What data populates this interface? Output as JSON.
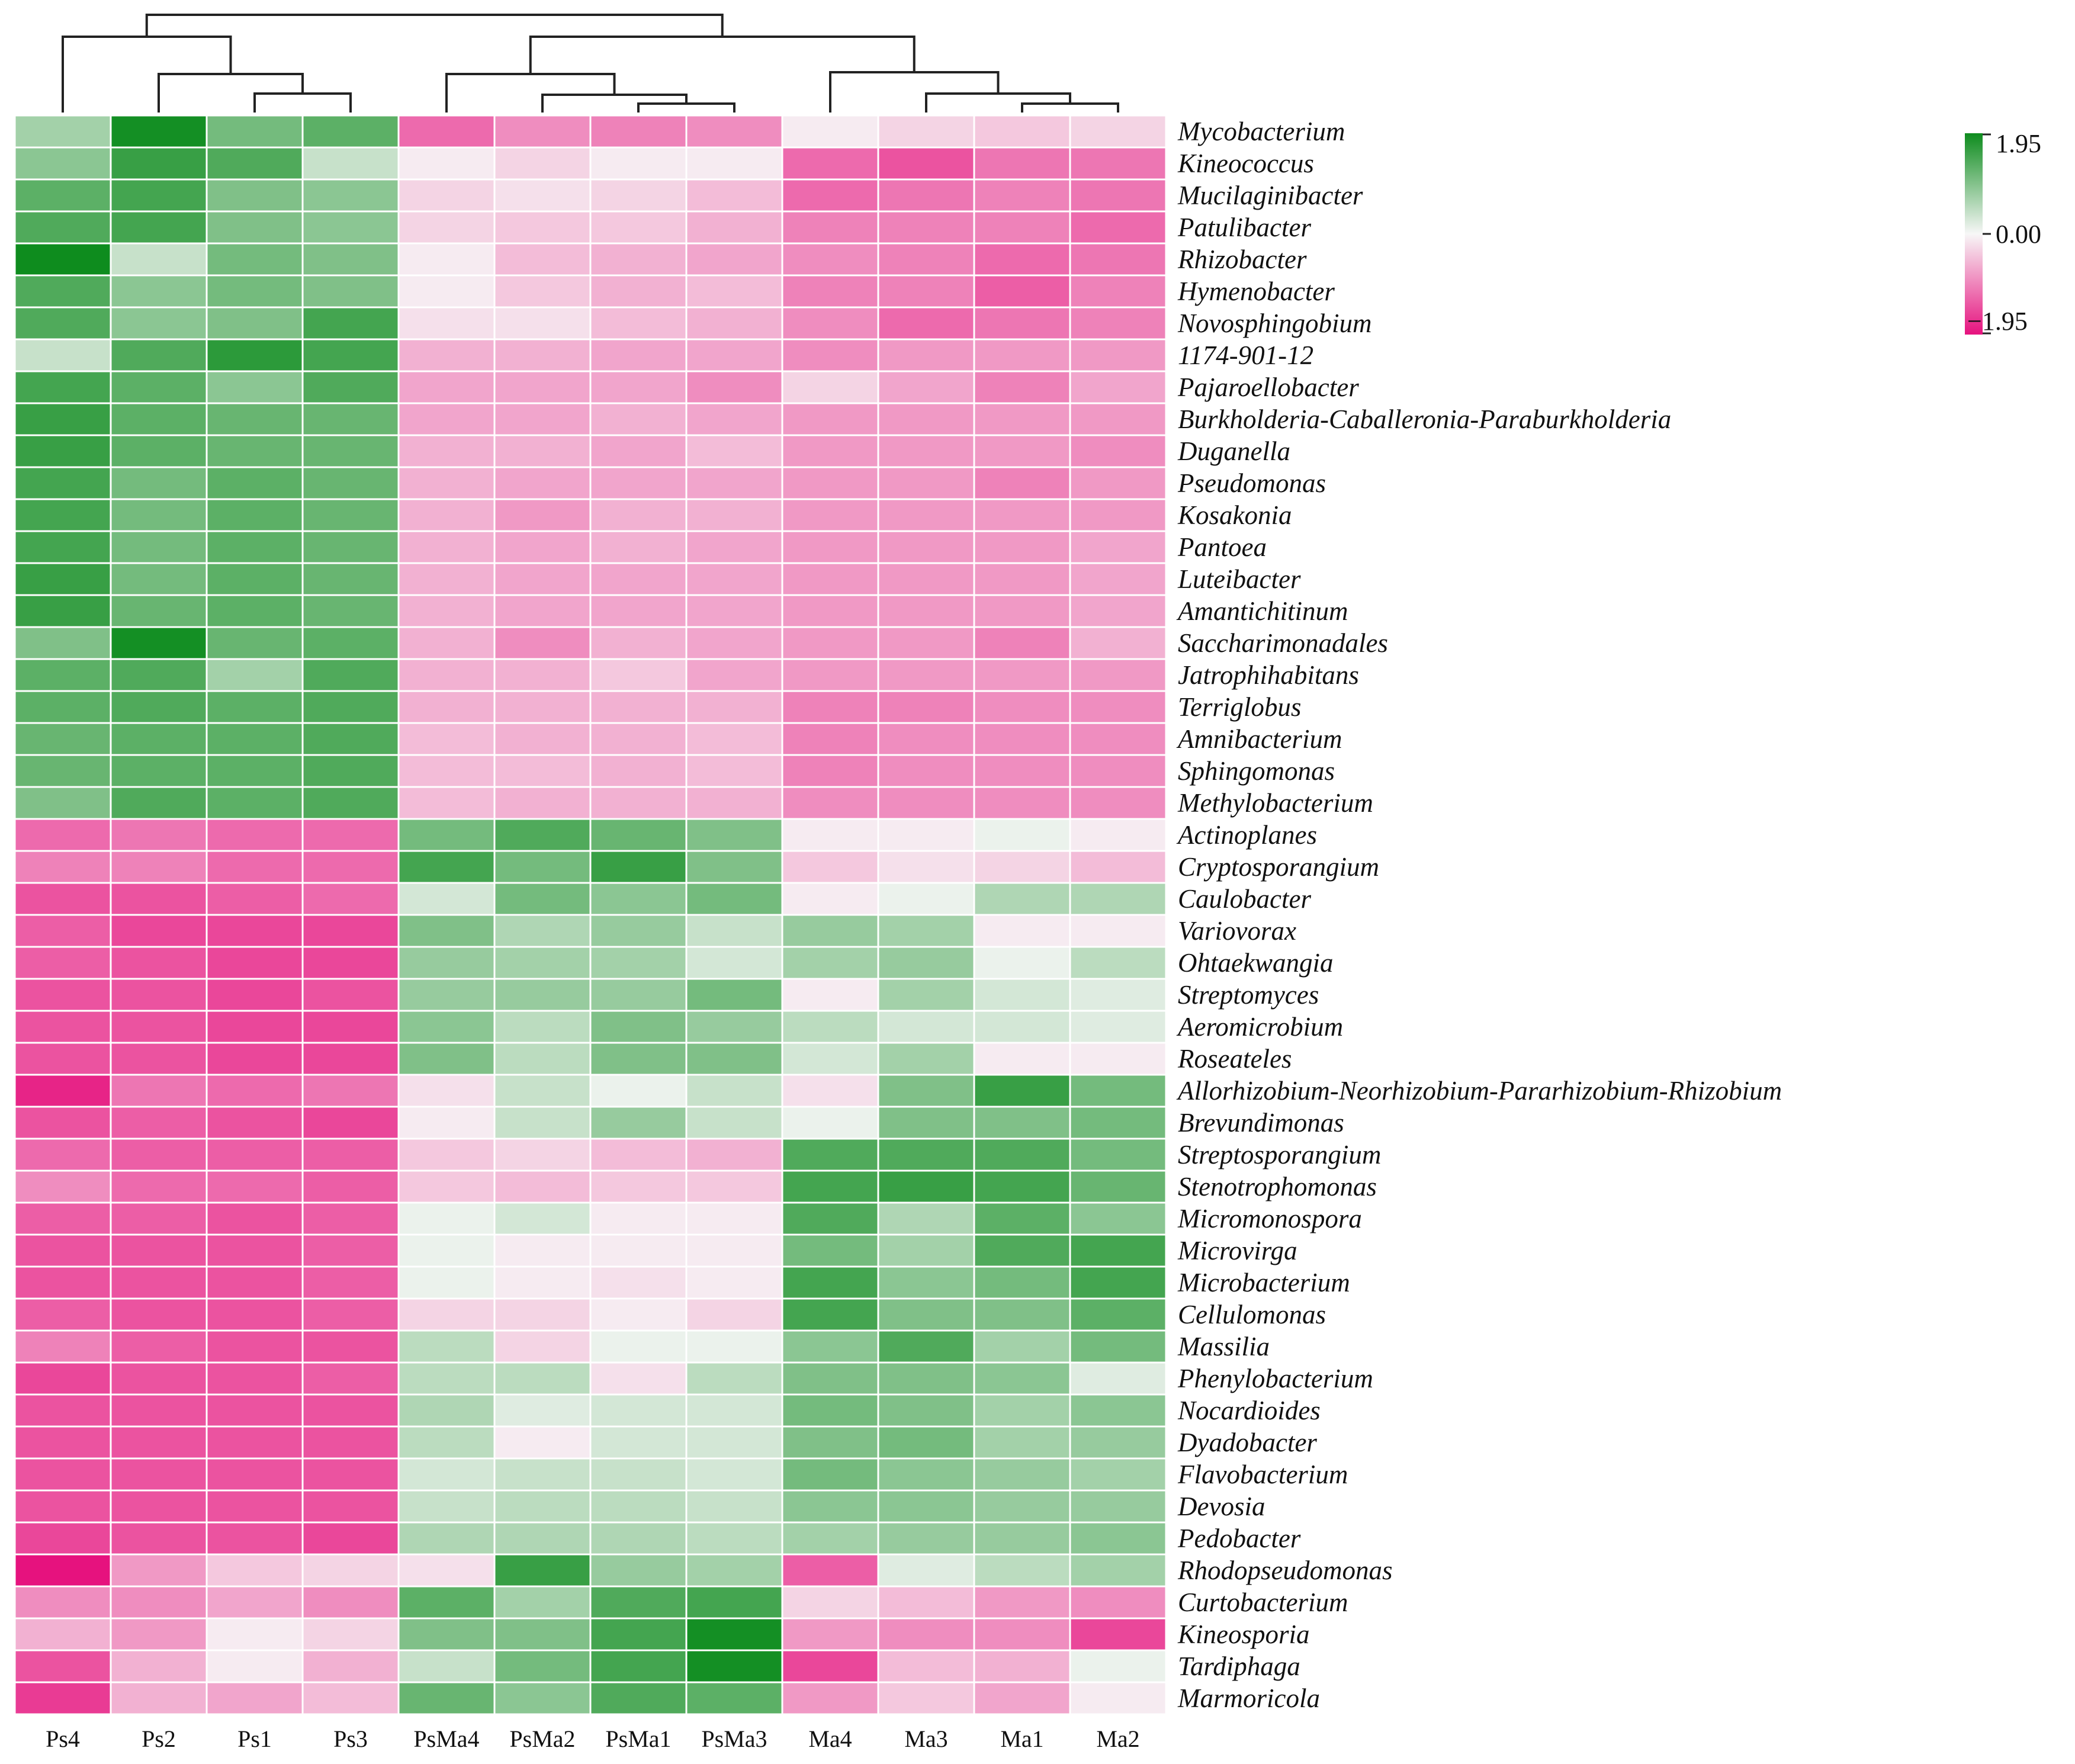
{
  "chart_data": {
    "type": "heatmap",
    "title": "",
    "columns": [
      "Ps4",
      "Ps2",
      "Ps1",
      "Ps3",
      "PsMa4",
      "PsMa2",
      "PsMa1",
      "PsMa3",
      "Ma4",
      "Ma3",
      "Ma1",
      "Ma2"
    ],
    "rows": [
      "Mycobacterium",
      "Kineococcus",
      "Mucilaginibacter",
      "Patulibacter",
      "Rhizobacter",
      "Hymenobacter",
      "Novosphingobium",
      "1174-901-12",
      "Pajaroellobacter",
      "Burkholderia-Caballeronia-Paraburkholderia",
      "Duganella",
      "Pseudomonas",
      "Kosakonia",
      "Pantoea",
      "Luteibacter",
      "Amantichitinum",
      "Saccharimonadales",
      "Jatrophihabitans",
      "Terriglobus",
      "Amnibacterium",
      "Sphingomonas",
      "Methylobacterium",
      "Actinoplanes",
      "Cryptosporangium",
      "Caulobacter",
      "Variovorax",
      "Ohtaekwangia",
      "Streptomyces",
      "Aeromicrobium",
      "Roseateles",
      "Allorhizobium-Neorhizobium-Pararhizobium-Rhizobium",
      "Brevundimonas",
      "Streptosporangium",
      "Stenotrophomonas",
      "Micromonospora",
      "Microvirga",
      "Microbacterium",
      "Cellulomonas",
      "Massilia",
      "Phenylobacterium",
      "Nocardioides",
      "Dyadobacter",
      "Flavobacterium",
      "Devosia",
      "Pedobacter",
      "Rhodopseudomonas",
      "Curtobacterium",
      "Kineosporia",
      "Tardiphaga",
      "Marmoricola"
    ],
    "values": [
      [
        0.7,
        1.9,
        1.1,
        1.3,
        -1.2,
        -0.9,
        -1.0,
        -0.9,
        -0.1,
        -0.3,
        -0.4,
        -0.3
      ],
      [
        0.9,
        1.6,
        1.4,
        0.4,
        -0.1,
        -0.3,
        -0.1,
        -0.1,
        -1.2,
        -1.4,
        -1.1,
        -1.1
      ],
      [
        1.3,
        1.5,
        1.0,
        0.9,
        -0.3,
        -0.2,
        -0.3,
        -0.5,
        -1.2,
        -1.1,
        -1.0,
        -1.1
      ],
      [
        1.4,
        1.5,
        1.0,
        0.9,
        -0.3,
        -0.4,
        -0.4,
        -0.6,
        -1.0,
        -1.0,
        -1.0,
        -1.2
      ],
      [
        1.95,
        0.4,
        1.1,
        1.0,
        -0.1,
        -0.5,
        -0.6,
        -0.7,
        -0.9,
        -1.0,
        -1.2,
        -1.1
      ],
      [
        1.4,
        0.9,
        1.1,
        1.0,
        -0.1,
        -0.4,
        -0.6,
        -0.5,
        -1.0,
        -1.0,
        -1.3,
        -1.0
      ],
      [
        1.4,
        0.9,
        1.0,
        1.5,
        -0.2,
        -0.2,
        -0.5,
        -0.6,
        -0.9,
        -1.2,
        -1.1,
        -1.0
      ],
      [
        0.4,
        1.4,
        1.7,
        1.5,
        -0.6,
        -0.6,
        -0.7,
        -0.7,
        -0.9,
        -0.8,
        -0.8,
        -0.8
      ],
      [
        1.5,
        1.3,
        0.9,
        1.4,
        -0.7,
        -0.7,
        -0.7,
        -0.9,
        -0.3,
        -0.7,
        -1.0,
        -0.7
      ],
      [
        1.6,
        1.3,
        1.2,
        1.2,
        -0.7,
        -0.7,
        -0.6,
        -0.7,
        -0.8,
        -0.8,
        -0.8,
        -0.8
      ],
      [
        1.6,
        1.3,
        1.2,
        1.2,
        -0.6,
        -0.6,
        -0.7,
        -0.5,
        -0.8,
        -0.8,
        -0.8,
        -0.9
      ],
      [
        1.5,
        1.1,
        1.3,
        1.2,
        -0.6,
        -0.7,
        -0.7,
        -0.7,
        -0.8,
        -0.8,
        -1.0,
        -0.8
      ],
      [
        1.5,
        1.1,
        1.3,
        1.2,
        -0.6,
        -0.8,
        -0.6,
        -0.6,
        -0.8,
        -0.8,
        -0.8,
        -0.8
      ],
      [
        1.5,
        1.1,
        1.3,
        1.2,
        -0.6,
        -0.7,
        -0.6,
        -0.7,
        -0.8,
        -0.8,
        -0.8,
        -0.7
      ],
      [
        1.6,
        1.1,
        1.3,
        1.2,
        -0.6,
        -0.7,
        -0.7,
        -0.7,
        -0.8,
        -0.8,
        -0.8,
        -0.7
      ],
      [
        1.6,
        1.2,
        1.3,
        1.2,
        -0.6,
        -0.7,
        -0.7,
        -0.7,
        -0.8,
        -0.8,
        -0.8,
        -0.7
      ],
      [
        1.0,
        1.9,
        1.2,
        1.3,
        -0.6,
        -0.9,
        -0.6,
        -0.7,
        -0.8,
        -0.8,
        -1.0,
        -0.6
      ],
      [
        1.3,
        1.4,
        0.7,
        1.4,
        -0.6,
        -0.6,
        -0.4,
        -0.7,
        -0.8,
        -0.8,
        -0.8,
        -0.8
      ],
      [
        1.3,
        1.4,
        1.3,
        1.4,
        -0.6,
        -0.6,
        -0.6,
        -0.6,
        -1.0,
        -1.0,
        -0.9,
        -0.9
      ],
      [
        1.2,
        1.3,
        1.3,
        1.4,
        -0.5,
        -0.6,
        -0.6,
        -0.5,
        -1.0,
        -0.9,
        -0.9,
        -0.9
      ],
      [
        1.2,
        1.3,
        1.3,
        1.4,
        -0.5,
        -0.5,
        -0.6,
        -0.5,
        -1.0,
        -0.9,
        -0.9,
        -0.9
      ],
      [
        1.0,
        1.4,
        1.3,
        1.4,
        -0.5,
        -0.6,
        -0.6,
        -0.6,
        -0.9,
        -0.9,
        -0.9,
        -0.9
      ],
      [
        -1.2,
        -1.1,
        -1.2,
        -1.2,
        1.1,
        1.4,
        1.2,
        1.0,
        -0.1,
        -0.1,
        0.1,
        -0.1
      ],
      [
        -1.0,
        -1.0,
        -1.2,
        -1.2,
        1.5,
        1.1,
        1.6,
        1.0,
        -0.4,
        -0.2,
        -0.3,
        -0.5
      ],
      [
        -1.4,
        -1.4,
        -1.3,
        -1.2,
        0.3,
        1.1,
        0.9,
        1.1,
        -0.1,
        0.1,
        0.6,
        0.6
      ],
      [
        -1.3,
        -1.5,
        -1.5,
        -1.5,
        1.0,
        0.6,
        0.8,
        0.4,
        0.8,
        0.7,
        -0.1,
        -0.1
      ],
      [
        -1.3,
        -1.4,
        -1.5,
        -1.5,
        0.8,
        0.7,
        0.7,
        0.3,
        0.7,
        0.8,
        0.1,
        0.5
      ],
      [
        -1.4,
        -1.4,
        -1.5,
        -1.4,
        0.8,
        0.8,
        0.8,
        1.1,
        -0.1,
        0.7,
        0.3,
        0.2
      ],
      [
        -1.4,
        -1.4,
        -1.5,
        -1.5,
        0.9,
        0.5,
        1.0,
        0.8,
        0.5,
        0.3,
        0.3,
        0.2
      ],
      [
        -1.4,
        -1.4,
        -1.5,
        -1.5,
        1.0,
        0.5,
        1.0,
        1.0,
        0.3,
        0.7,
        -0.1,
        -0.1
      ],
      [
        -1.8,
        -1.1,
        -1.2,
        -1.1,
        -0.2,
        0.4,
        0.1,
        0.4,
        -0.2,
        1.0,
        1.6,
        1.1
      ],
      [
        -1.4,
        -1.3,
        -1.4,
        -1.5,
        -0.1,
        0.4,
        0.8,
        0.4,
        0.1,
        1.0,
        1.0,
        1.1
      ],
      [
        -1.2,
        -1.3,
        -1.3,
        -1.3,
        -0.4,
        -0.3,
        -0.5,
        -0.6,
        1.4,
        1.4,
        1.4,
        1.1
      ],
      [
        -0.9,
        -1.2,
        -1.2,
        -1.3,
        -0.4,
        -0.5,
        -0.4,
        -0.4,
        1.5,
        1.6,
        1.5,
        1.2
      ],
      [
        -1.3,
        -1.3,
        -1.4,
        -1.3,
        0.1,
        0.3,
        -0.1,
        -0.1,
        1.4,
        0.6,
        1.3,
        0.9
      ],
      [
        -1.4,
        -1.4,
        -1.4,
        -1.3,
        0.1,
        -0.1,
        -0.1,
        -0.1,
        1.1,
        0.7,
        1.4,
        1.5
      ],
      [
        -1.4,
        -1.4,
        -1.4,
        -1.3,
        0.1,
        -0.1,
        -0.2,
        -0.1,
        1.5,
        0.9,
        1.1,
        1.5
      ],
      [
        -1.3,
        -1.4,
        -1.4,
        -1.3,
        -0.3,
        -0.3,
        -0.1,
        -0.3,
        1.5,
        1.0,
        1.0,
        1.3
      ],
      [
        -1.0,
        -1.3,
        -1.4,
        -1.4,
        0.5,
        -0.3,
        0.1,
        0.1,
        0.9,
        1.4,
        0.7,
        1.1
      ],
      [
        -1.5,
        -1.4,
        -1.4,
        -1.3,
        0.5,
        0.5,
        -0.2,
        0.5,
        1.0,
        1.0,
        0.9,
        0.2
      ],
      [
        -1.4,
        -1.4,
        -1.4,
        -1.4,
        0.6,
        0.2,
        0.3,
        0.3,
        1.1,
        1.0,
        0.7,
        0.9
      ],
      [
        -1.4,
        -1.4,
        -1.4,
        -1.4,
        0.5,
        -0.1,
        0.3,
        0.3,
        1.0,
        1.1,
        0.7,
        0.8
      ],
      [
        -1.4,
        -1.4,
        -1.4,
        -1.4,
        0.3,
        0.4,
        0.4,
        0.3,
        1.1,
        0.9,
        0.8,
        0.7
      ],
      [
        -1.4,
        -1.4,
        -1.4,
        -1.4,
        0.4,
        0.5,
        0.5,
        0.4,
        0.9,
        0.9,
        0.8,
        0.8
      ],
      [
        -1.5,
        -1.4,
        -1.4,
        -1.5,
        0.6,
        0.6,
        0.6,
        0.5,
        0.7,
        0.8,
        0.8,
        0.9
      ],
      [
        -1.95,
        -0.8,
        -0.4,
        -0.3,
        -0.2,
        1.6,
        0.8,
        0.7,
        -1.3,
        0.2,
        0.5,
        0.7
      ],
      [
        -0.9,
        -0.9,
        -0.7,
        -0.9,
        1.3,
        0.7,
        1.4,
        1.5,
        -0.3,
        -0.5,
        -0.8,
        -0.9
      ],
      [
        -0.6,
        -0.8,
        -0.1,
        -0.3,
        1.0,
        1.0,
        1.5,
        1.9,
        -0.8,
        -0.9,
        -0.9,
        -1.5
      ],
      [
        -1.4,
        -0.6,
        -0.1,
        -0.6,
        0.4,
        1.1,
        1.5,
        1.9,
        -1.5,
        -0.5,
        -0.6,
        0.1
      ],
      [
        -1.6,
        -0.6,
        -0.7,
        -0.5,
        1.2,
        0.9,
        1.4,
        1.3,
        -0.8,
        -0.4,
        -0.7,
        -0.1
      ]
    ],
    "color_scale": {
      "min": -1.95,
      "max": 1.95,
      "low_color": "#e6127e",
      "mid_color": "#f7f7f7",
      "high_color": "#0e8c1e"
    },
    "legend": {
      "position": "top-right",
      "max_label": "1.95",
      "mid_label": "0.00",
      "min_label": "−1.95"
    },
    "column_dendrogram": {
      "groups": [
        [
          "Ps4",
          "Ps2",
          "Ps1",
          "Ps3"
        ],
        [
          "PsMa4",
          "PsMa2",
          "PsMa1",
          "PsMa3"
        ],
        [
          "Ma4",
          "Ma3",
          "Ma1",
          "Ma2"
        ]
      ],
      "merge_order": "((Ps4,(Ps2,(Ps1,Ps3))),((PsMa4,(PsMa2,(PsMa1,PsMa3))),(Ma4,(Ma3,(Ma1,Ma2)))))"
    },
    "grid": true
  }
}
